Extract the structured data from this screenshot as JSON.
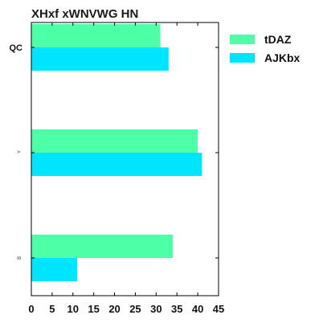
{
  "chart_data": {
    "type": "bar",
    "orientation": "horizontal",
    "title": "XHxf xWNVWG HN",
    "categories": [
      "QC",
      "Y",
      "B"
    ],
    "series": [
      {
        "name": "tDAZ",
        "color": "#4dffa6",
        "values": [
          31,
          40,
          34
        ]
      },
      {
        "name": "AJKbx",
        "color": "#00e5ff",
        "values": [
          33,
          41,
          11
        ]
      }
    ],
    "xlim": [
      0,
      45
    ],
    "xticks": [
      0,
      5,
      10,
      15,
      20,
      25,
      30,
      35,
      40,
      45
    ],
    "xlabel": "",
    "ylabel": "",
    "grid": false,
    "legend_position": "top-right-outside"
  }
}
